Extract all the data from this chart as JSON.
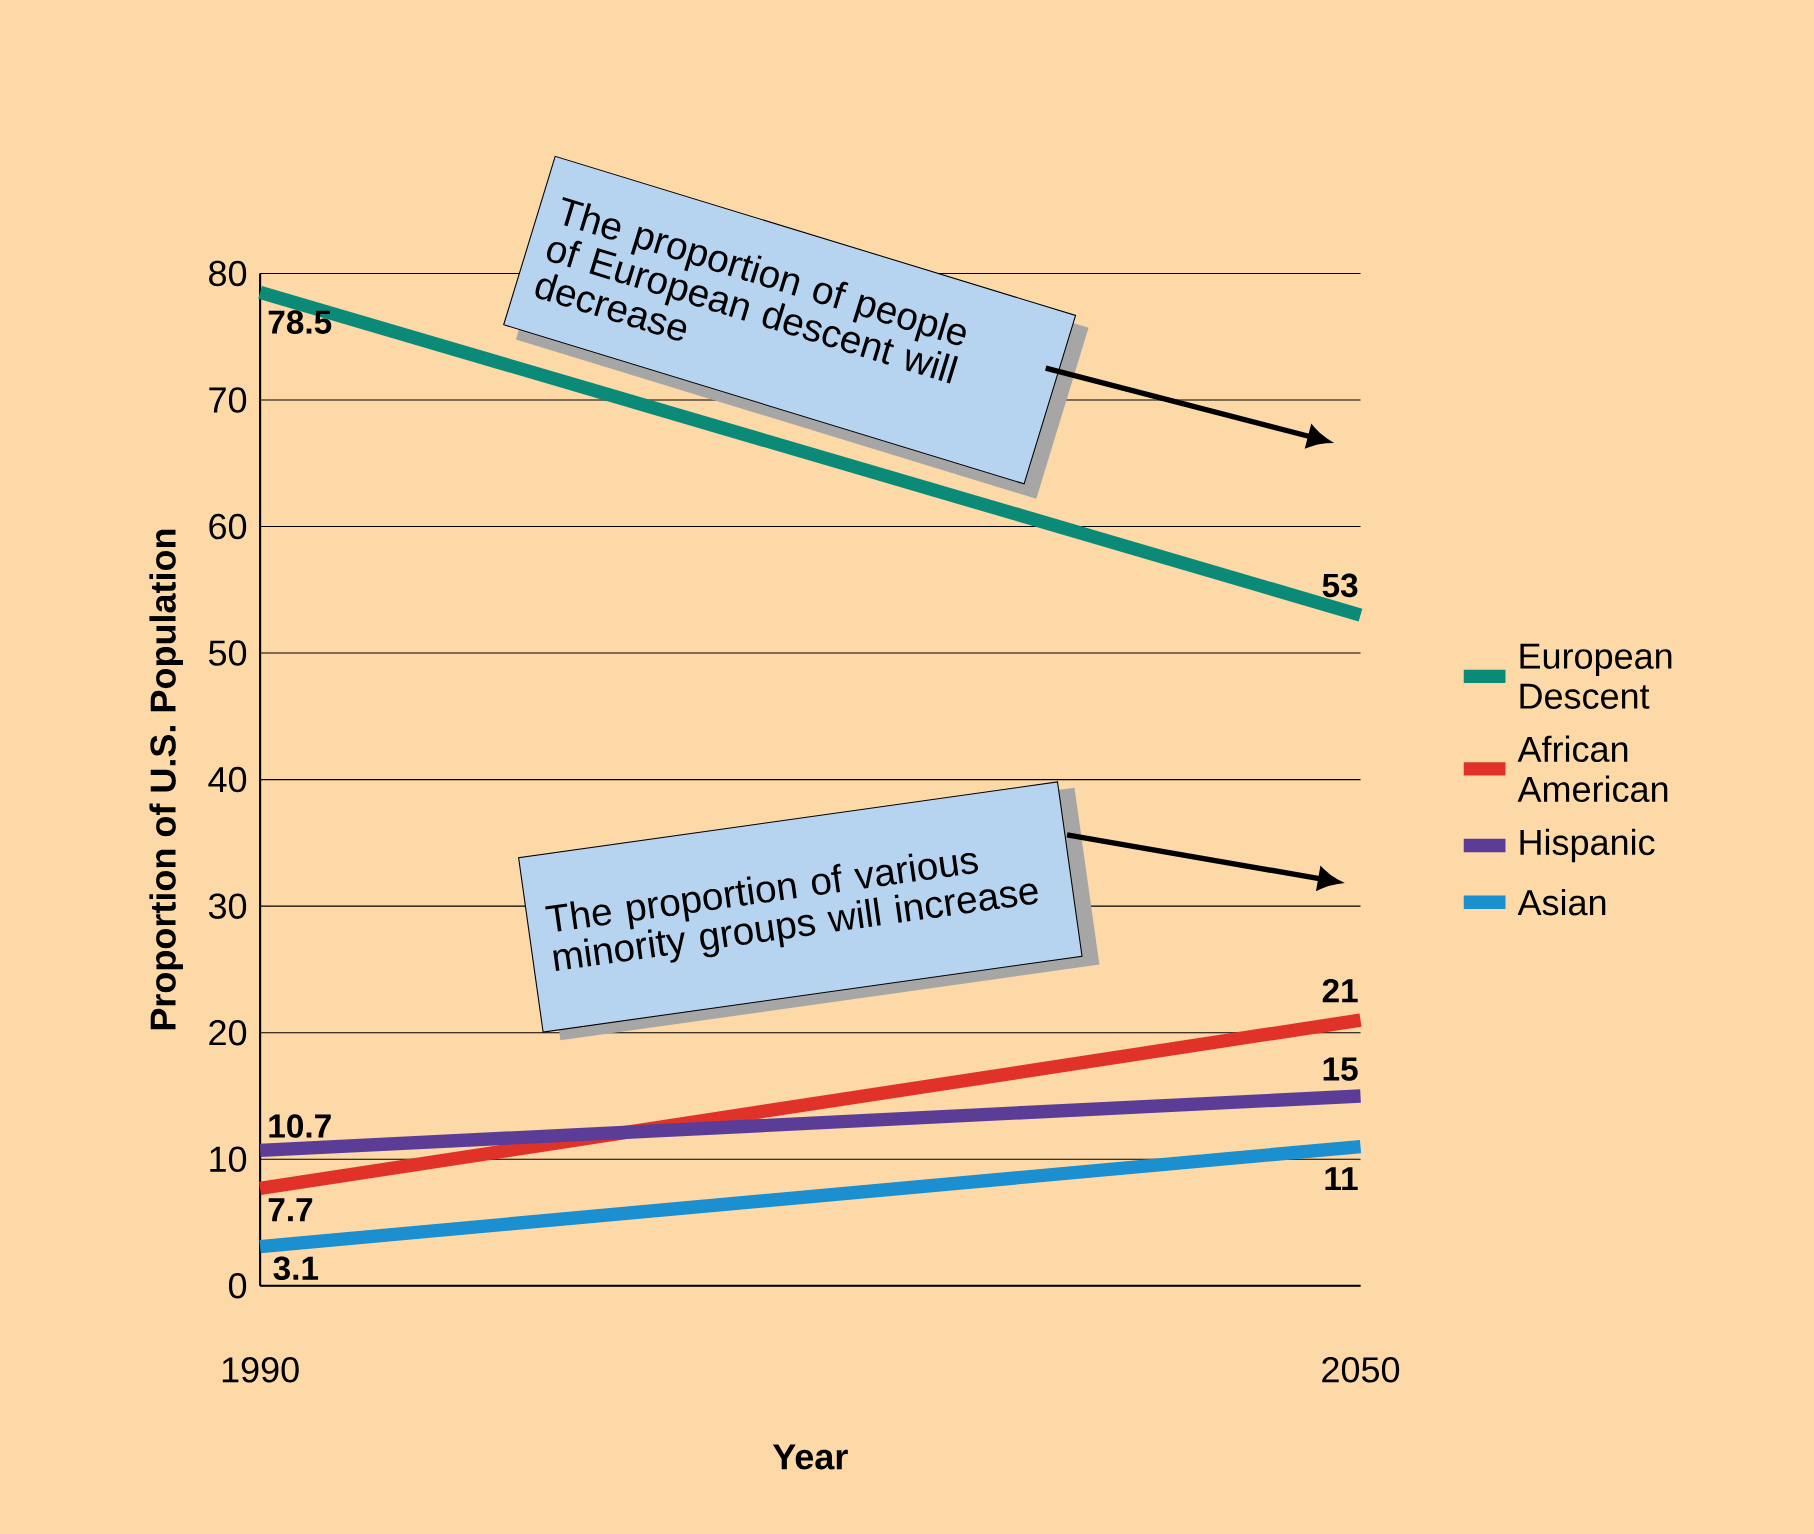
{
  "chart_data": {
    "type": "line",
    "xlabel": "Year",
    "ylabel": "Proportion of U.S. Population",
    "x": [
      1990,
      2050
    ],
    "xlim": [
      1990,
      2050
    ],
    "xticks": [
      1990,
      2050
    ],
    "ylim": [
      0,
      80
    ],
    "yticks": [
      0,
      10,
      20,
      30,
      40,
      50,
      60,
      70,
      80
    ],
    "grid": "y",
    "legend": "right",
    "marker": "none",
    "line_style": "solid",
    "series": [
      {
        "name": "European Descent",
        "color": "#0b8a78",
        "values": [
          78.5,
          53
        ],
        "value_labels": [
          "78.5",
          "53"
        ]
      },
      {
        "name": "African American",
        "color": "#e1322a",
        "values": [
          7.7,
          21
        ],
        "value_labels": [
          "7.7",
          "21"
        ]
      },
      {
        "name": "Hispanic",
        "color": "#5b3d97",
        "values": [
          10.7,
          15
        ],
        "value_labels": [
          "10.7",
          "15"
        ]
      },
      {
        "name": "Asian",
        "color": "#1b8fcf",
        "values": [
          3.1,
          11
        ],
        "value_labels": [
          "3.1",
          "11"
        ]
      }
    ],
    "annotations": [
      "The proportion of people of European descent will decrease",
      "The proportion of various minority groups will increase"
    ]
  }
}
